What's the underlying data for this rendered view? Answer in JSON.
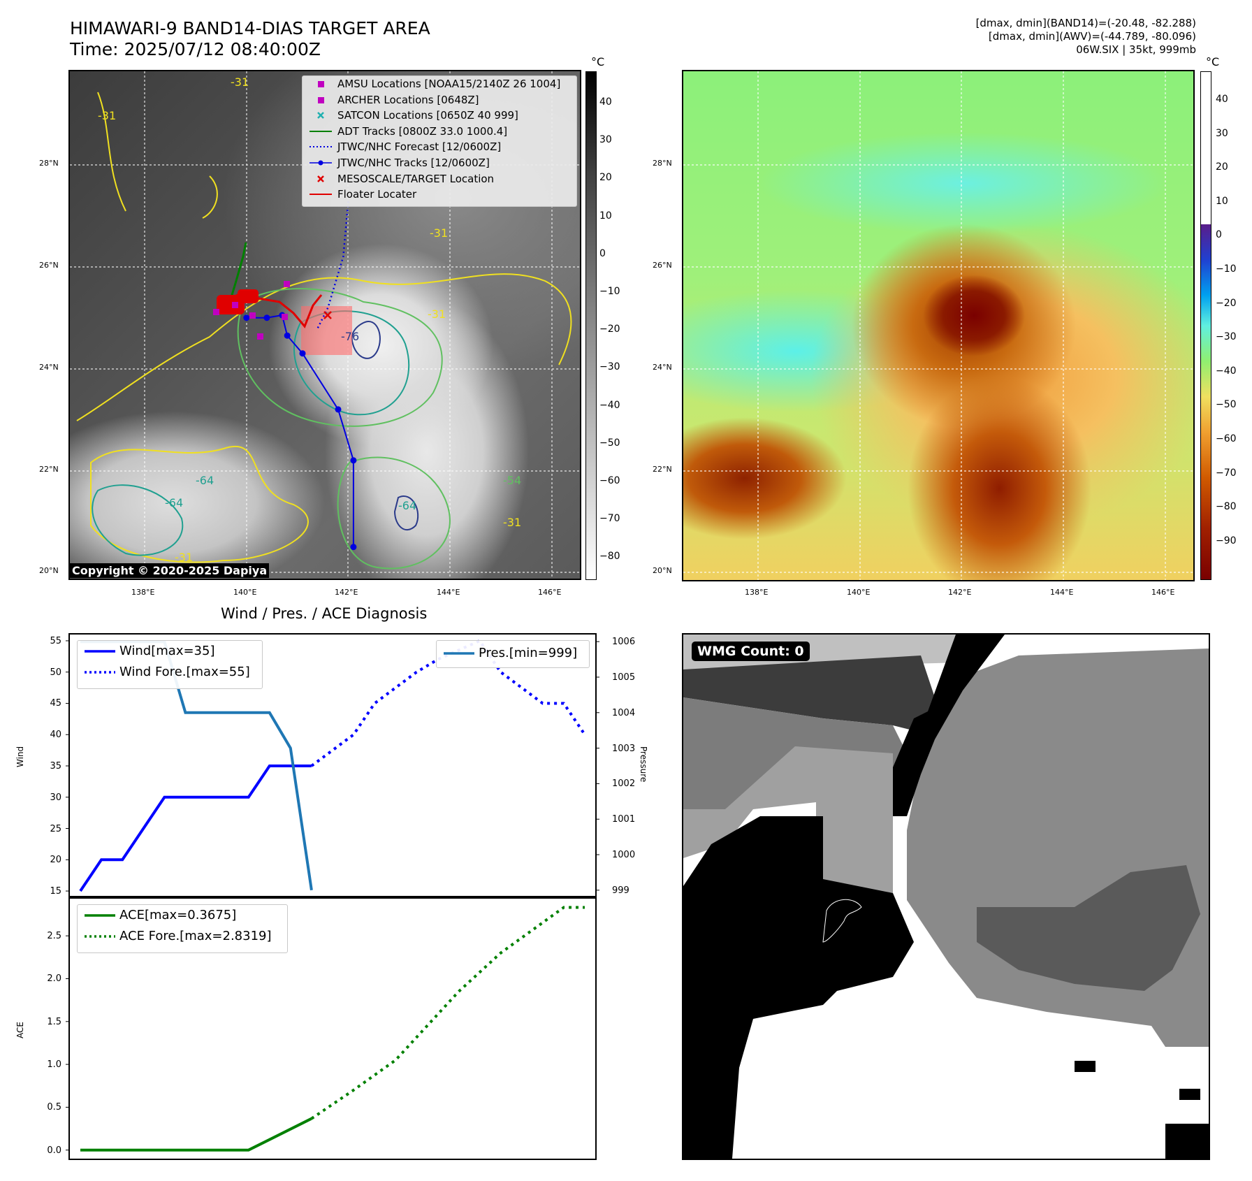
{
  "header": {
    "title_line1": "HIMAWARI-9 BAND14-DIAS TARGET AREA",
    "title_line2": "Time: 2025/07/12 08:40:00Z",
    "info_line1": "[dmax, dmin](BAND14)=(-20.48, -82.288)",
    "info_line2": "[dmax, dmin](AWV)=(-44.789, -80.096)",
    "info_line3": "06W.SIX | 35kt, 999mb"
  },
  "map_axes": {
    "lat_labels": [
      "28°N",
      "26°N",
      "24°N",
      "22°N",
      "20°N"
    ],
    "lon_labels": [
      "138°E",
      "140°E",
      "142°E",
      "144°E",
      "146°E"
    ]
  },
  "ir_panel": {
    "colorbar_unit": "°C",
    "colorbar_ticks": [
      "40",
      "30",
      "20",
      "10",
      "0",
      "−10",
      "−20",
      "−30",
      "−40",
      "−50",
      "−60",
      "−70",
      "−80"
    ],
    "contour_labels": [
      "-31",
      "-31",
      "-31",
      "-54",
      "-64",
      "-64",
      "-64",
      "-31",
      "-31",
      "-76",
      "-31"
    ],
    "copyright": "Copyright © 2020-2025 Dapiya",
    "legend": [
      {
        "label": "AMSU Locations [NOAA15/2140Z 26 1004]",
        "symbol": "square",
        "color": "#c000c0"
      },
      {
        "label": "ARCHER Locations [0648Z]",
        "symbol": "square",
        "color": "#c000c0"
      },
      {
        "label": "SATCON Locations [0650Z 40 999]",
        "symbol": "x",
        "color": "#20b0b0"
      },
      {
        "label": "ADT Tracks [0800Z 33.0 1000.4]",
        "symbol": "line",
        "color": "#008000"
      },
      {
        "label": "JTWC/NHC Forecast [12/0600Z]",
        "symbol": "dotted",
        "color": "#0000e0"
      },
      {
        "label": "JTWC/NHC Tracks [12/0600Z]",
        "symbol": "line-dot",
        "color": "#0000e0"
      },
      {
        "label": "MESOSCALE/TARGET Location",
        "symbol": "x",
        "color": "#e00000"
      },
      {
        "label": "Floater Locater",
        "symbol": "line",
        "color": "#e00000"
      }
    ],
    "jtwc_track": [
      {
        "lon": 142.1,
        "lat": 20.5
      },
      {
        "lon": 142.1,
        "lat": 22.2
      },
      {
        "lon": 141.8,
        "lat": 23.2
      },
      {
        "lon": 141.1,
        "lat": 24.3
      },
      {
        "lon": 140.8,
        "lat": 24.65
      },
      {
        "lon": 140.7,
        "lat": 25.05
      },
      {
        "lon": 140.4,
        "lat": 25.0
      },
      {
        "lon": 140.0,
        "lat": 25.0
      }
    ],
    "jtwc_forecast": [
      {
        "lon": 141.4,
        "lat": 24.8
      },
      {
        "lon": 141.6,
        "lat": 25.2
      },
      {
        "lon": 141.9,
        "lat": 26.2
      },
      {
        "lon": 142.0,
        "lat": 27.3
      }
    ]
  },
  "awv_panel": {
    "colorbar_unit": "°C",
    "colorbar_ticks": [
      "40",
      "30",
      "20",
      "10",
      "0",
      "−10",
      "−20",
      "−30",
      "−40",
      "−50",
      "−60",
      "−70",
      "−80",
      "−90"
    ]
  },
  "chart_data": [
    {
      "type": "line",
      "title": "Wind / Pres. / ACE Diagnosis",
      "ylabel": "Wind",
      "ylabel_right": "Pressure",
      "ylim": [
        14,
        56
      ],
      "ylim_right": [
        998.8,
        1006.2
      ],
      "yticks": [
        15,
        20,
        25,
        30,
        35,
        40,
        45,
        50,
        55
      ],
      "yticks_right": [
        999,
        1000,
        1001,
        1002,
        1003,
        1004,
        1005,
        1006
      ],
      "xlim": [
        -0.5,
        24.5
      ],
      "series": [
        {
          "name": "Wind[max=35]",
          "color": "#0000ff",
          "style": "solid",
          "x": [
            0,
            1,
            2,
            4,
            8,
            9,
            10,
            11
          ],
          "values": [
            15,
            20,
            20,
            30,
            30,
            35,
            35,
            35
          ]
        },
        {
          "name": "Wind Fore.[max=55]",
          "color": "#0000ff",
          "style": "dotted",
          "x": [
            11,
            13,
            14,
            16,
            17,
            19,
            20,
            22,
            23,
            24
          ],
          "values": [
            35,
            40,
            45,
            50,
            52,
            55,
            50,
            45,
            45,
            40
          ]
        },
        {
          "name": "Pres.[min=999]",
          "color": "#1f77b4",
          "style": "solid",
          "axis": "right",
          "x": [
            0,
            4,
            5,
            9,
            10,
            11
          ],
          "values": [
            1006,
            1006,
            1004,
            1004,
            1003,
            999
          ]
        }
      ],
      "legend_left": "top-left",
      "legend_right": "top-right"
    },
    {
      "type": "line",
      "ylabel": "ACE",
      "ylim": [
        -0.1,
        2.95
      ],
      "yticks": [
        0.0,
        0.5,
        1.0,
        1.5,
        2.0,
        2.5
      ],
      "xlim": [
        -0.5,
        24.5
      ],
      "series": [
        {
          "name": "ACE[max=0.3675]",
          "color": "#008000",
          "style": "solid",
          "x": [
            0,
            8,
            11
          ],
          "values": [
            0,
            0,
            0.3675
          ]
        },
        {
          "name": "ACE Fore.[max=2.8319]",
          "color": "#008000",
          "style": "dotted",
          "x": [
            11,
            13,
            15,
            18,
            20,
            23,
            24
          ],
          "values": [
            0.3675,
            0.7,
            1.05,
            1.85,
            2.3,
            2.8319,
            2.8319
          ]
        }
      ],
      "legend": "top-left"
    }
  ],
  "wmg_panel": {
    "badge": "WMG Count: 0"
  }
}
